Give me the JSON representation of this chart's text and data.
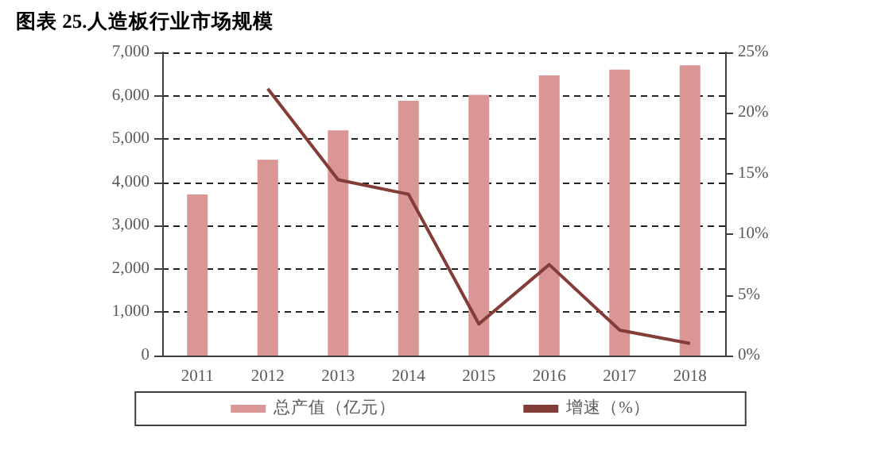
{
  "chart_data": {
    "type": "bar",
    "title": "图表 25.人造板行业市场规模",
    "categories": [
      "2011",
      "2012",
      "2013",
      "2014",
      "2015",
      "2016",
      "2017",
      "2018"
    ],
    "series": [
      {
        "name": "总产值（亿元）",
        "color": "#d99694",
        "values": [
          3720,
          4520,
          5200,
          5880,
          6020,
          6470,
          6600,
          6700
        ]
      },
      {
        "name": "增速（%）",
        "type": "line",
        "axis": "y2",
        "color": "#843c39",
        "marker": "none",
        "values": [
          null,
          22,
          14.5,
          13.3,
          2.6,
          7.5,
          2.1,
          1.0
        ]
      }
    ],
    "ylim": [
      0,
      7000
    ],
    "yticks": [
      {
        "value": 0,
        "label": "0"
      },
      {
        "value": 1000,
        "label": "1,000"
      },
      {
        "value": 2000,
        "label": "2,000"
      },
      {
        "value": 3000,
        "label": "3,000"
      },
      {
        "value": 4000,
        "label": "4,000"
      },
      {
        "value": 5000,
        "label": "5,000"
      },
      {
        "value": 6000,
        "label": "6,000"
      },
      {
        "value": 7000,
        "label": "7,000"
      }
    ],
    "y2lim": [
      0,
      25
    ],
    "y2ticks": [
      {
        "value": 0,
        "label": "0%"
      },
      {
        "value": 5,
        "label": "5%"
      },
      {
        "value": 10,
        "label": "10%"
      },
      {
        "value": 15,
        "label": "15%"
      },
      {
        "value": 20,
        "label": "20%"
      },
      {
        "value": 25,
        "label": "25%"
      }
    ],
    "grid": "y",
    "legend": "bottom"
  }
}
